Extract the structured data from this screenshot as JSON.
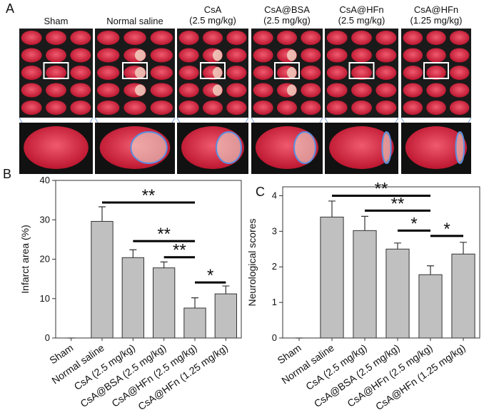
{
  "panel_labels": [
    "A",
    "B",
    "C"
  ],
  "panel_a": {
    "groups": [
      [
        "Sham"
      ],
      [
        "Normal saline"
      ],
      [
        "CsA",
        "(2.5 mg/kg)"
      ],
      [
        "CsA@BSA",
        "(2.5 mg/kg)"
      ],
      [
        "CsA@HFn",
        "(2.5 mg/kg)"
      ],
      [
        "CsA@HFn",
        "(1.25 mg/kg)"
      ]
    ]
  },
  "chart_data": [
    {
      "type": "bar",
      "ylabel": "Infarct area (%)",
      "categories": [
        "Sham",
        "Normal saline",
        "CsA (2.5 mg/kg)",
        "CsA@BSA (2.5 mg/kg)",
        "CsA@HFn (2.5 mg/kg)",
        "CsA@HFn (1.25 mg/kg)"
      ],
      "values": [
        0,
        29.6,
        20.4,
        17.8,
        7.6,
        11.2
      ],
      "errors": [
        0,
        3.7,
        2.0,
        1.5,
        2.6,
        2.0
      ],
      "color": "#c0c0c0",
      "ylim": [
        0,
        40
      ],
      "yticks": [
        0,
        10,
        20,
        30,
        40
      ],
      "significance": [
        {
          "from": 1,
          "to": 4,
          "label": "**",
          "y": 34.4
        },
        {
          "from": 2,
          "to": 4,
          "label": "**",
          "y": 24.6
        },
        {
          "from": 3,
          "to": 4,
          "label": "**",
          "y": 20.5
        },
        {
          "from": 4,
          "to": 5,
          "label": "*",
          "y": 14.1
        }
      ]
    },
    {
      "type": "bar",
      "ylabel": "Neurological scores",
      "categories": [
        "Sham",
        "Normal saline",
        "CsA (2.5 mg/kg)",
        "CsA@BSA (2.5 mg/kg)",
        "CsA@HFn (2.5 mg/kg)",
        "CsA@HFn (1.25 mg/kg)"
      ],
      "values": [
        0,
        3.4,
        3.02,
        2.5,
        1.78,
        2.36
      ],
      "errors": [
        0,
        0.45,
        0.4,
        0.17,
        0.25,
        0.33
      ],
      "color": "#c0c0c0",
      "ylim": [
        0,
        4.25
      ],
      "yticks": [
        0,
        1,
        2,
        3,
        4
      ],
      "significance": [
        {
          "from": 1,
          "to": 4,
          "label": "**",
          "y": 4.0
        },
        {
          "from": 2,
          "to": 4,
          "label": "**",
          "y": 3.58
        },
        {
          "from": 3,
          "to": 4,
          "label": "*",
          "y": 3.02
        },
        {
          "from": 4,
          "to": 5,
          "label": "*",
          "y": 2.87
        }
      ]
    }
  ]
}
